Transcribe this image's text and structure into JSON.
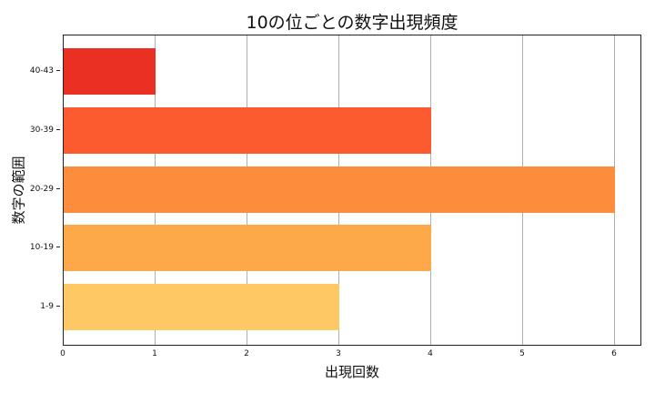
{
  "chart_data": {
    "type": "bar",
    "orientation": "horizontal",
    "title": "10の位ごとの数字出現頻度",
    "xlabel": "出現回数",
    "ylabel": "数字の範囲",
    "categories": [
      "1-9",
      "10-19",
      "20-29",
      "30-39",
      "40-43"
    ],
    "values": [
      3,
      4,
      6,
      4,
      1
    ],
    "colors": [
      "#fec965",
      "#fda94a",
      "#fd8d3c",
      "#fc5b2f",
      "#ea2f23"
    ],
    "xlim": [
      0,
      6.3
    ],
    "xticks": [
      "0",
      "1",
      "2",
      "3",
      "4",
      "5",
      "6"
    ],
    "grid": "x",
    "legend": null
  }
}
